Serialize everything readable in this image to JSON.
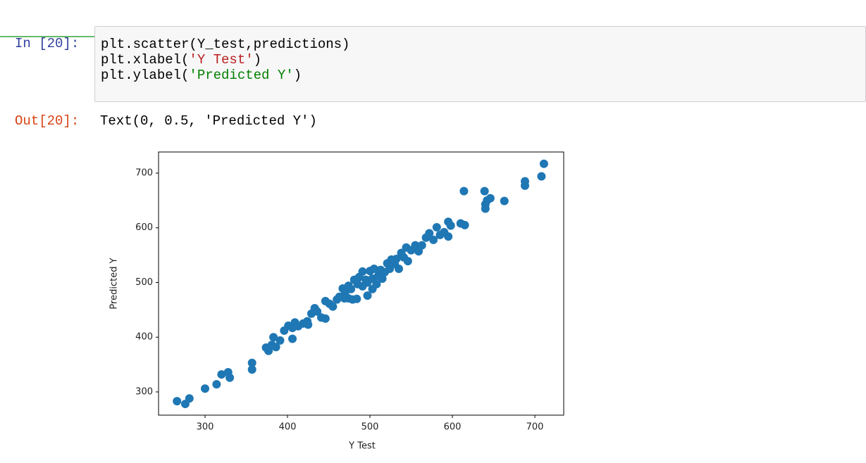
{
  "cell": {
    "in_prompt": "In [20]:",
    "code": [
      [
        "plt.scatter(Y_test,predictions)"
      ],
      [
        "plt.xlabel(",
        "'Y Test'",
        ")"
      ],
      [
        "plt.ylabel(",
        "'Predicted Y'",
        ")"
      ]
    ],
    "out_prompt": "Out[20]:",
    "output": "Text(0, 0.5, 'Predicted Y')"
  },
  "chart_data": {
    "type": "scatter",
    "xlabel": "Y Test",
    "ylabel": "Predicted Y",
    "color": "#1f77b4",
    "xlim": [
      243.6,
      735
    ],
    "ylim": [
      257.5,
      738.6
    ],
    "xticks": [
      300,
      400,
      500,
      600,
      700
    ],
    "yticks": [
      300,
      400,
      500,
      600,
      700
    ],
    "x": [
      266,
      276,
      281,
      300,
      314,
      320,
      328,
      330,
      357,
      357,
      374,
      377,
      381,
      383,
      386,
      391,
      396,
      401,
      406,
      409,
      406,
      413,
      419,
      424,
      429,
      433,
      436,
      441,
      446,
      446,
      451,
      455,
      460,
      463,
      467,
      470,
      474,
      474,
      477,
      479,
      481,
      485,
      487,
      491,
      491,
      495,
      497,
      497,
      500,
      503,
      505,
      508,
      510,
      513,
      515,
      518,
      521,
      524,
      526,
      530,
      532,
      535,
      538,
      541,
      544,
      546,
      550,
      555,
      559,
      563,
      568,
      572,
      577,
      581,
      585,
      590,
      595,
      598,
      595,
      610,
      615,
      614,
      639,
      640,
      642,
      640,
      646,
      663,
      688,
      688,
      708,
      711,
      469,
      484,
      503,
      425
    ],
    "values": [
      283,
      278,
      288,
      306,
      314,
      332,
      336,
      326,
      353,
      341,
      381,
      375,
      386,
      400,
      382,
      394,
      412,
      421,
      417,
      427,
      397,
      420,
      425,
      429,
      443,
      453,
      447,
      436,
      434,
      466,
      461,
      456,
      469,
      474,
      489,
      483,
      494,
      471,
      488,
      469,
      505,
      497,
      510,
      493,
      520,
      505,
      500,
      476,
      521,
      507,
      525,
      497,
      512,
      523,
      507,
      519,
      535,
      525,
      542,
      534,
      543,
      525,
      554,
      546,
      564,
      539,
      559,
      568,
      557,
      568,
      582,
      590,
      578,
      601,
      587,
      592,
      611,
      604,
      584,
      608,
      605,
      667,
      667,
      643,
      650,
      635,
      654,
      649,
      685,
      677,
      694,
      717,
      471,
      470,
      488,
      423
    ]
  }
}
